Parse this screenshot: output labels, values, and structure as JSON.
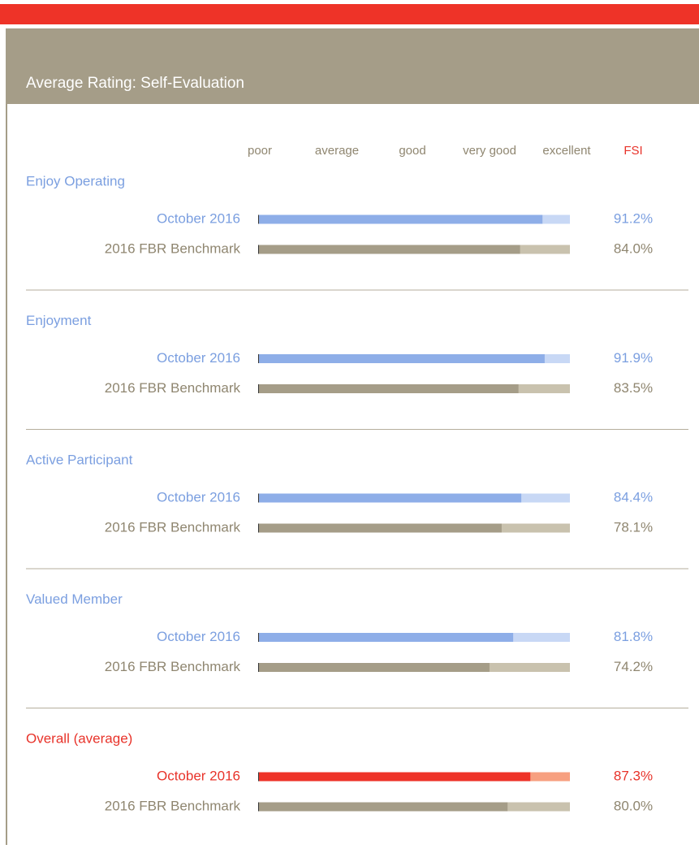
{
  "header": {
    "title": "Average Rating: Self-Evaluation"
  },
  "scale": {
    "labels": [
      "poor",
      "average",
      "good",
      "very good",
      "excellent"
    ],
    "fsi_label": "FSI",
    "xlim": [
      0,
      100
    ]
  },
  "groups": [
    {
      "name": "Enjoy Operating",
      "color": "#7b9fe0",
      "rows": [
        {
          "label": "October 2016",
          "value": 91.2,
          "value_label": "91.2%",
          "color": "#8eaee8",
          "track": "#c8d8f5",
          "text_color": "#7b9fe0"
        },
        {
          "label": "2016 FBR Benchmark",
          "value": 84.0,
          "value_label": "84.0%",
          "color": "#a59d88",
          "track": "#c9c2ae",
          "text_color": "#8f8670"
        }
      ]
    },
    {
      "name": "Enjoyment",
      "color": "#7b9fe0",
      "rows": [
        {
          "label": "October 2016",
          "value": 91.9,
          "value_label": "91.9%",
          "color": "#8eaee8",
          "track": "#c8d8f5",
          "text_color": "#7b9fe0"
        },
        {
          "label": "2016 FBR Benchmark",
          "value": 83.5,
          "value_label": "83.5%",
          "color": "#a59d88",
          "track": "#c9c2ae",
          "text_color": "#8f8670"
        }
      ]
    },
    {
      "name": "Active Participant",
      "color": "#7b9fe0",
      "rows": [
        {
          "label": "October 2016",
          "value": 84.4,
          "value_label": "84.4%",
          "color": "#8eaee8",
          "track": "#c8d8f5",
          "text_color": "#7b9fe0"
        },
        {
          "label": "2016 FBR Benchmark",
          "value": 78.1,
          "value_label": "78.1%",
          "color": "#a59d88",
          "track": "#c9c2ae",
          "text_color": "#8f8670"
        }
      ]
    },
    {
      "name": "Valued Member",
      "color": "#7b9fe0",
      "rows": [
        {
          "label": "October 2016",
          "value": 81.8,
          "value_label": "81.8%",
          "color": "#8eaee8",
          "track": "#c8d8f5",
          "text_color": "#7b9fe0"
        },
        {
          "label": "2016 FBR Benchmark",
          "value": 74.2,
          "value_label": "74.2%",
          "color": "#a59d88",
          "track": "#c9c2ae",
          "text_color": "#8f8670"
        }
      ]
    },
    {
      "name": "Overall (average)",
      "color": "#e8332a",
      "rows": [
        {
          "label": "October 2016",
          "value": 87.3,
          "value_label": "87.3%",
          "color": "#ee3328",
          "track": "#f7a080",
          "text_color": "#e8332a"
        },
        {
          "label": "2016 FBR Benchmark",
          "value": 80.0,
          "value_label": "80.0%",
          "color": "#a59d88",
          "track": "#c9c2ae",
          "text_color": "#8f8670"
        }
      ]
    }
  ]
}
